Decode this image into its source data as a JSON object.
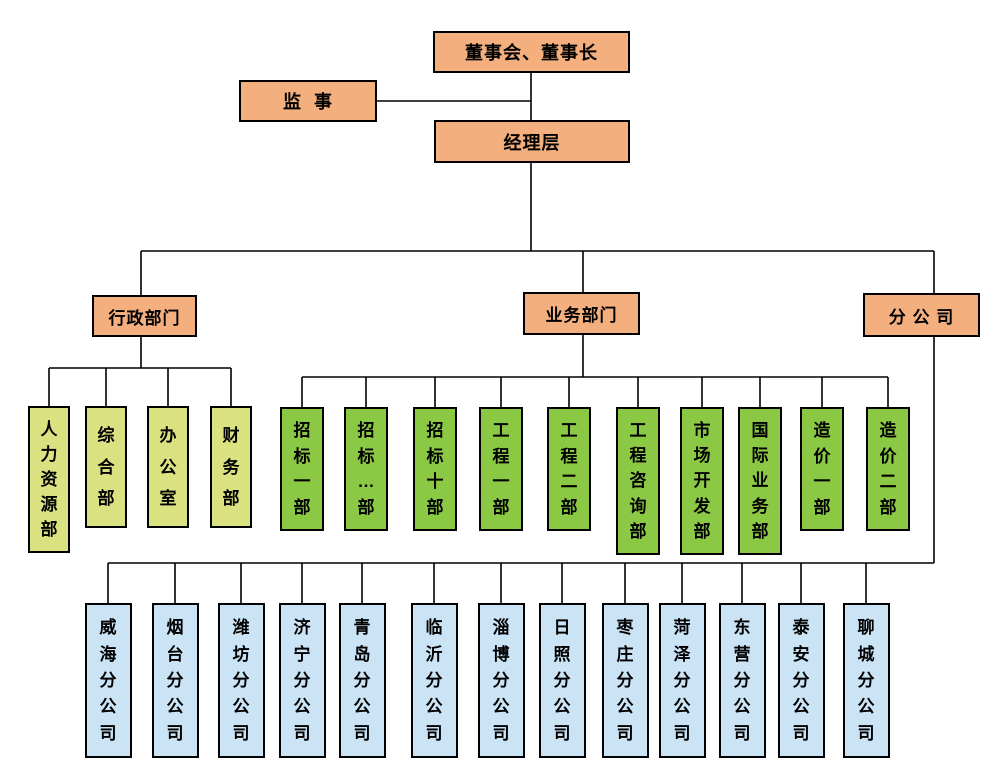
{
  "org": {
    "board": {
      "label": "董事会、董事长"
    },
    "supervisor": {
      "label": "监  事"
    },
    "management": {
      "label": "经理层"
    },
    "branches": [
      {
        "label": "行政部门",
        "children": [
          "人力资源部",
          "综合部",
          "办公室",
          "财务部"
        ]
      },
      {
        "label": "业务部门",
        "children": [
          "招标一部",
          "招标…部",
          "招标十部",
          "工程一部",
          "工程二部",
          "工程咨询部",
          "市场开发部",
          "国际业务部",
          "造价一部",
          "造价二部"
        ]
      },
      {
        "label": "分 公 司",
        "children": [
          "威海分公司",
          "烟台分公司",
          "潍坊分公司",
          "济宁分公司",
          "青岛分公司",
          "临沂分公司",
          "淄博分公司",
          "日照分公司",
          "枣庄分公司",
          "菏泽分公司",
          "东营分公司",
          "泰安分公司",
          "聊城分公司"
        ]
      }
    ],
    "colors": {
      "top_box": "#F4AF7E",
      "admin_box": "#DAE181",
      "business_box": "#8BC844",
      "branch_box": "#CBE4F5",
      "line": "#000000"
    }
  }
}
